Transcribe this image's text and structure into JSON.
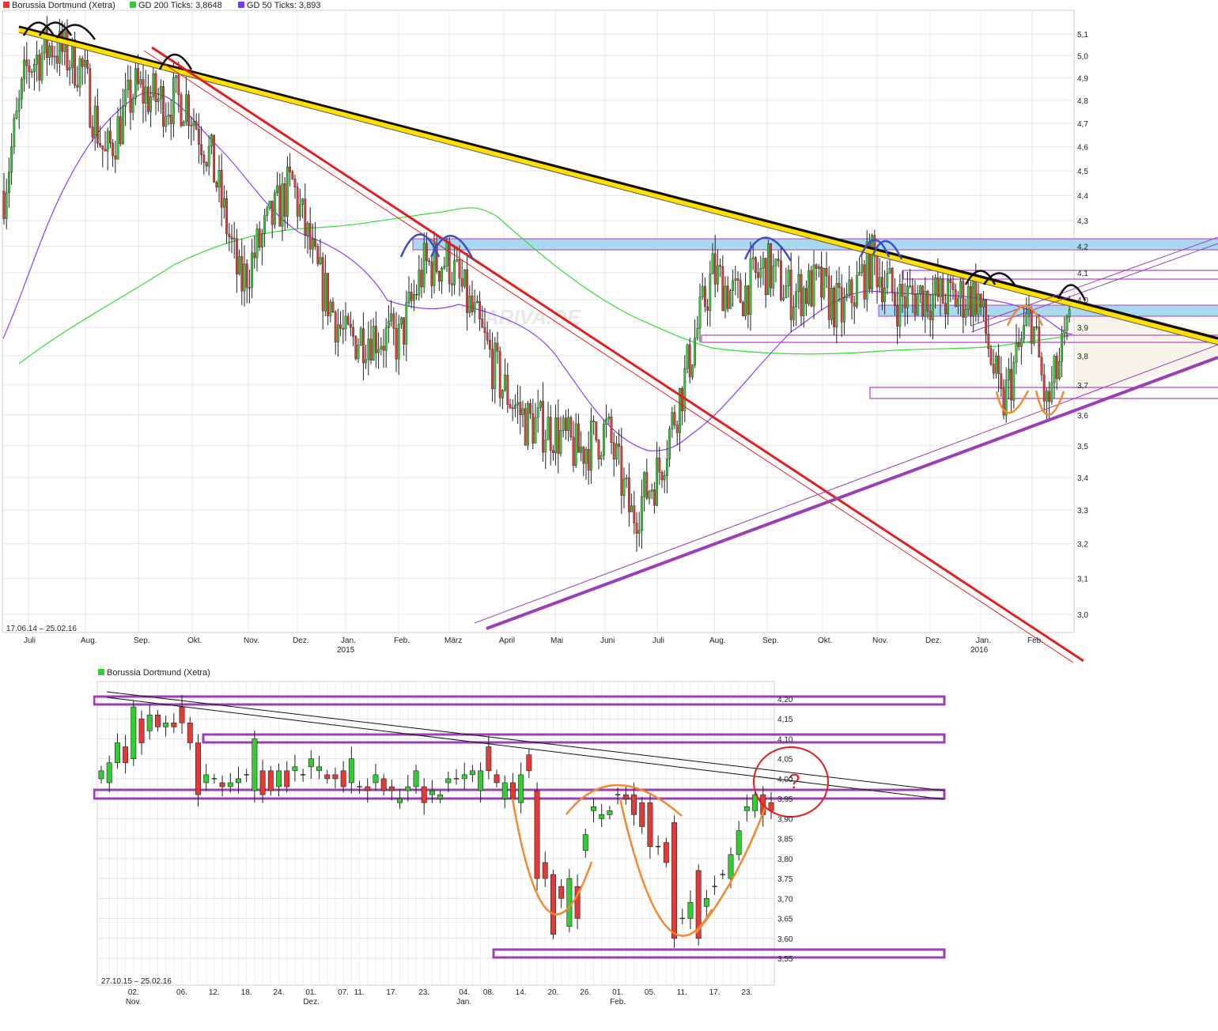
{
  "main_chart": {
    "legend": [
      {
        "label": "Borussia Dortmund (Xetra)",
        "color": "#e53935"
      },
      {
        "label": "GD 200 Ticks: 3,8648",
        "color": "#33cc33"
      },
      {
        "label": "GD 50 Ticks: 3,893",
        "color": "#7a3cff"
      }
    ],
    "period": "17.06.14 – 25.02.16",
    "watermark": "ARIVA.DE",
    "y_ticks": [
      "5,1",
      "5,0",
      "4,9",
      "4,8",
      "4,7",
      "4,6",
      "4,5",
      "4,4",
      "4,3",
      "4,2",
      "4,1",
      "4,0",
      "3,9",
      "3,8",
      "3,7",
      "3,6",
      "3,5",
      "3,4",
      "3,3",
      "3,2",
      "3,1",
      "3,0"
    ],
    "x_ticks": [
      "Juli",
      "Aug.",
      "Sep.",
      "Okt.",
      "Nov.",
      "Dez.",
      "Jan.",
      "Feb.",
      "März",
      "April",
      "Mai",
      "Juni",
      "Juli",
      "Aug.",
      "Sep.",
      "Okt.",
      "Nov.",
      "Dez.",
      "Jan.",
      "Feb."
    ],
    "year_labels": [
      "2015",
      "2016"
    ]
  },
  "sub_chart": {
    "legend": [
      {
        "label": "Borussia Dortmund (Xetra)",
        "color": "#33cc33"
      }
    ],
    "period": "27.10.15 – 25.02.16",
    "y_ticks": [
      "4,20",
      "4,15",
      "4,10",
      "4,05",
      "4,00",
      "3,95",
      "3,90",
      "3,85",
      "3,80",
      "3,75",
      "3,70",
      "3,65",
      "3,60",
      "3,55"
    ],
    "x_ticks": [
      "02.",
      "06.",
      "12.",
      "18.",
      "24.",
      "01.",
      "07.",
      "11.",
      "17.",
      "23.",
      "04.",
      "08.",
      "14.",
      "20.",
      "26.",
      "01.",
      "05.",
      "11.",
      "17.",
      "23."
    ],
    "month_labels": [
      "Nov.",
      "Dez.",
      "Jan.",
      "Feb."
    ],
    "annotation": "?"
  },
  "chart_data": [
    {
      "type": "candlestick",
      "title": "Borussia Dortmund (Xetra)",
      "period": "17.06.14 – 25.02.16",
      "ylim": [
        2.95,
        5.15
      ],
      "y_scale": "log",
      "series": [
        {
          "name": "GD 200 Ticks",
          "last": 3.8648
        },
        {
          "name": "GD 50 Ticks",
          "last": 3.893
        }
      ],
      "approx_close_path": [
        {
          "x": "2014-06-17",
          "y": 4.4
        },
        {
          "x": "2014-07-01",
          "y": 4.95
        },
        {
          "x": "2014-07-15",
          "y": 5.05
        },
        {
          "x": "2014-08-01",
          "y": 4.95
        },
        {
          "x": "2014-08-15",
          "y": 4.55
        },
        {
          "x": "2014-09-01",
          "y": 4.85
        },
        {
          "x": "2014-09-15",
          "y": 4.8
        },
        {
          "x": "2014-10-01",
          "y": 4.8
        },
        {
          "x": "2014-10-15",
          "y": 4.55
        },
        {
          "x": "2014-11-01",
          "y": 4.05
        },
        {
          "x": "2014-11-15",
          "y": 4.25
        },
        {
          "x": "2014-12-01",
          "y": 4.45
        },
        {
          "x": "2014-12-15",
          "y": 4.1
        },
        {
          "x": "2015-01-01",
          "y": 3.85
        },
        {
          "x": "2015-01-15",
          "y": 3.88
        },
        {
          "x": "2015-02-01",
          "y": 3.85
        },
        {
          "x": "2015-02-15",
          "y": 4.12
        },
        {
          "x": "2015-03-01",
          "y": 4.15
        },
        {
          "x": "2015-03-15",
          "y": 3.95
        },
        {
          "x": "2015-04-01",
          "y": 3.7
        },
        {
          "x": "2015-04-15",
          "y": 3.58
        },
        {
          "x": "2015-05-01",
          "y": 3.55
        },
        {
          "x": "2015-05-15",
          "y": 3.48
        },
        {
          "x": "2015-06-01",
          "y": 3.55
        },
        {
          "x": "2015-06-15",
          "y": 3.28
        },
        {
          "x": "2015-07-01",
          "y": 3.42
        },
        {
          "x": "2015-07-15",
          "y": 3.7
        },
        {
          "x": "2015-08-01",
          "y": 4.1
        },
        {
          "x": "2015-08-15",
          "y": 4.0
        },
        {
          "x": "2015-09-01",
          "y": 4.12
        },
        {
          "x": "2015-09-15",
          "y": 4.02
        },
        {
          "x": "2015-10-01",
          "y": 4.05
        },
        {
          "x": "2015-10-15",
          "y": 3.95
        },
        {
          "x": "2015-11-01",
          "y": 4.15
        },
        {
          "x": "2015-11-15",
          "y": 4.0
        },
        {
          "x": "2015-12-01",
          "y": 4.02
        },
        {
          "x": "2015-12-15",
          "y": 4.0
        },
        {
          "x": "2016-01-01",
          "y": 4.02
        },
        {
          "x": "2016-01-15",
          "y": 3.62
        },
        {
          "x": "2016-02-01",
          "y": 3.95
        },
        {
          "x": "2016-02-10",
          "y": 3.62
        },
        {
          "x": "2016-02-25",
          "y": 3.93
        }
      ]
    },
    {
      "type": "candlestick",
      "title": "Borussia Dortmund (Xetra)",
      "period": "27.10.15 – 25.02.16",
      "ylim": [
        3.53,
        4.22
      ],
      "candles": [
        {
          "x": "27.10.",
          "o": 4.0,
          "c": 4.02
        },
        {
          "x": "28.10.",
          "o": 3.99,
          "c": 4.04
        },
        {
          "x": "29.10.",
          "o": 4.04,
          "c": 4.09
        },
        {
          "x": "30.10.",
          "o": 4.08,
          "c": 4.04
        },
        {
          "x": "02.11.",
          "o": 4.05,
          "c": 4.18
        },
        {
          "x": "03.11.",
          "o": 4.15,
          "c": 4.09
        },
        {
          "x": "04.11.",
          "o": 4.12,
          "c": 4.16
        },
        {
          "x": "05.11.",
          "o": 4.16,
          "c": 4.13
        },
        {
          "x": "06.11.",
          "o": 4.13,
          "c": 4.14
        },
        {
          "x": "09.11.",
          "o": 4.14,
          "c": 4.13
        },
        {
          "x": "10.11.",
          "o": 4.18,
          "c": 4.14
        },
        {
          "x": "11.11.",
          "o": 4.14,
          "c": 4.09
        },
        {
          "x": "12.11.",
          "o": 4.09,
          "c": 3.96
        },
        {
          "x": "13.11.",
          "o": 3.99,
          "c": 4.01
        },
        {
          "x": "16.11.",
          "o": 4.0,
          "c": 4.0
        },
        {
          "x": "17.11.",
          "o": 3.99,
          "c": 3.98
        },
        {
          "x": "18.11.",
          "o": 3.98,
          "c": 3.99
        },
        {
          "x": "19.11.",
          "o": 3.99,
          "c": 4.0
        },
        {
          "x": "20.11.",
          "o": 4.01,
          "c": 4.01
        },
        {
          "x": "23.11.",
          "o": 3.97,
          "c": 4.1
        },
        {
          "x": "24.11.",
          "o": 4.02,
          "c": 3.96
        },
        {
          "x": "25.11.",
          "o": 4.02,
          "c": 3.97
        },
        {
          "x": "26.11.",
          "o": 3.98,
          "c": 4.02
        },
        {
          "x": "27.11.",
          "o": 4.02,
          "c": 3.98
        },
        {
          "x": "30.11.",
          "o": 4.02,
          "c": 4.03
        },
        {
          "x": "01.12.",
          "o": 4.01,
          "c": 4.01
        },
        {
          "x": "02.12.",
          "o": 4.03,
          "c": 4.05
        },
        {
          "x": "03.12.",
          "o": 4.02,
          "c": 4.03
        },
        {
          "x": "04.12.",
          "o": 4.01,
          "c": 4.0
        },
        {
          "x": "07.12.",
          "o": 4.01,
          "c": 4.0
        },
        {
          "x": "08.12.",
          "o": 4.02,
          "c": 3.98
        },
        {
          "x": "09.12.",
          "o": 3.99,
          "c": 4.05
        },
        {
          "x": "10.12.",
          "o": 3.98,
          "c": 3.98
        },
        {
          "x": "11.12.",
          "o": 3.98,
          "c": 3.97
        },
        {
          "x": "14.12.",
          "o": 3.99,
          "c": 4.01
        },
        {
          "x": "15.12.",
          "o": 4.0,
          "c": 3.97
        },
        {
          "x": "16.12.",
          "o": 3.98,
          "c": 3.97
        },
        {
          "x": "17.12.",
          "o": 3.94,
          "c": 3.95
        },
        {
          "x": "18.12.",
          "o": 3.97,
          "c": 3.98
        },
        {
          "x": "21.12.",
          "o": 3.98,
          "c": 4.02
        },
        {
          "x": "22.12.",
          "o": 3.98,
          "c": 3.94
        },
        {
          "x": "23.12.",
          "o": 3.96,
          "c": 3.97
        },
        {
          "x": "28.12.",
          "o": 3.95,
          "c": 3.96
        },
        {
          "x": "29.12.",
          "o": 3.99,
          "c": 4.0
        },
        {
          "x": "30.12.",
          "o": 4.0,
          "c": 4.0
        },
        {
          "x": "04.01.",
          "o": 4.0,
          "c": 4.01
        },
        {
          "x": "05.01.",
          "o": 4.01,
          "c": 4.02
        },
        {
          "x": "06.01.",
          "o": 3.97,
          "c": 4.02
        },
        {
          "x": "07.01.",
          "o": 4.08,
          "c": 4.02
        },
        {
          "x": "08.01.",
          "o": 4.01,
          "c": 3.99
        },
        {
          "x": "11.01.",
          "o": 3.95,
          "c": 3.99
        },
        {
          "x": "12.01.",
          "o": 3.99,
          "c": 3.95
        },
        {
          "x": "13.01.",
          "o": 3.94,
          "c": 4.01
        },
        {
          "x": "14.01.",
          "o": 4.06,
          "c": 4.02
        },
        {
          "x": "15.01.",
          "o": 3.97,
          "c": 3.75
        },
        {
          "x": "18.01.",
          "o": 3.79,
          "c": 3.75
        },
        {
          "x": "19.01.",
          "o": 3.76,
          "c": 3.61
        },
        {
          "x": "20.01.",
          "o": 3.73,
          "c": 3.7
        },
        {
          "x": "21.01.",
          "o": 3.63,
          "c": 3.75
        },
        {
          "x": "22.01.",
          "o": 3.73,
          "c": 3.65
        },
        {
          "x": "25.01.",
          "o": 3.82,
          "c": 3.86
        },
        {
          "x": "26.01.",
          "o": 3.92,
          "c": 3.93
        },
        {
          "x": "27.01.",
          "o": 3.9,
          "c": 3.91
        },
        {
          "x": "28.01.",
          "o": 3.91,
          "c": 3.92
        },
        {
          "x": "29.01.",
          "o": 3.96,
          "c": 3.96
        },
        {
          "x": "01.02.",
          "o": 3.96,
          "c": 3.95
        },
        {
          "x": "02.02.",
          "o": 3.96,
          "c": 3.91
        },
        {
          "x": "03.02.",
          "o": 3.94,
          "c": 3.88
        },
        {
          "x": "04.02.",
          "o": 3.94,
          "c": 3.83
        },
        {
          "x": "05.02.",
          "o": 3.83,
          "c": 3.83
        },
        {
          "x": "08.02.",
          "o": 3.84,
          "c": 3.79
        },
        {
          "x": "09.02.",
          "o": 3.89,
          "c": 3.6
        },
        {
          "x": "10.02.",
          "o": 3.65,
          "c": 3.65
        },
        {
          "x": "11.02.",
          "o": 3.65,
          "c": 3.69
        },
        {
          "x": "12.02.",
          "o": 3.77,
          "c": 3.6
        },
        {
          "x": "15.02.",
          "o": 3.68,
          "c": 3.7
        },
        {
          "x": "16.02.",
          "o": 3.73,
          "c": 3.73
        },
        {
          "x": "17.02.",
          "o": 3.76,
          "c": 3.76
        },
        {
          "x": "18.02.",
          "o": 3.75,
          "c": 3.81
        },
        {
          "x": "19.02.",
          "o": 3.81,
          "c": 3.87
        },
        {
          "x": "22.02.",
          "o": 3.92,
          "c": 3.93
        },
        {
          "x": "23.02.",
          "o": 3.92,
          "c": 3.96
        },
        {
          "x": "24.02.",
          "o": 3.96,
          "c": 3.91
        },
        {
          "x": "25.02.",
          "o": 3.94,
          "c": 3.92
        }
      ]
    }
  ],
  "colors": {
    "up": "#33cc33",
    "down": "#e53935",
    "gd200": "#33dd33",
    "gd50": "#8a3cff",
    "trend_yellow": "#ffe000",
    "trend_red": "#e02020",
    "trend_purple": "#9b3fb5",
    "zone_blue": "#a9d8ef",
    "zone_border": "#b040c0",
    "shape_orange": "#f08a30",
    "shape_blue": "#3b4fc4",
    "circle": "#e02020"
  }
}
